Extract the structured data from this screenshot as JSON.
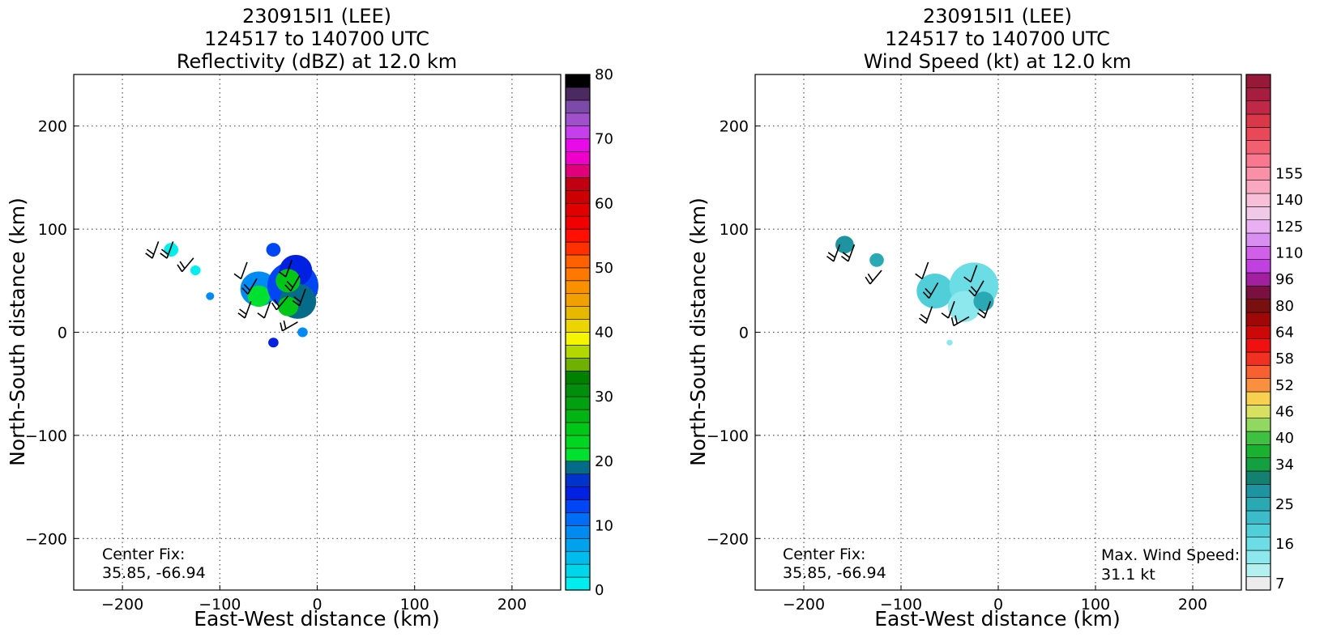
{
  "chart_data": [
    {
      "type": "heatmap",
      "title_lines": [
        "230915I1 (LEE)",
        "124517 to 140700 UTC",
        "Reflectivity (dBZ) at 12.0 km"
      ],
      "xlabel": "East-West distance (km)",
      "ylabel": "North-South distance (km)",
      "xlim": [
        -250,
        250
      ],
      "ylim": [
        -250,
        250
      ],
      "xticks": [
        -200,
        -100,
        0,
        100,
        200
      ],
      "yticks": [
        -200,
        -100,
        0,
        100,
        200
      ],
      "grid": true,
      "center_fix": {
        "label": "Center Fix:",
        "value": "35.85, -66.94"
      },
      "colorbar": {
        "min": 0,
        "max": 80,
        "ticks": [
          "0",
          "10",
          "20",
          "30",
          "40",
          "50",
          "60",
          "70",
          "80"
        ],
        "colors": [
          "#00eded",
          "#00d6ea",
          "#00bcec",
          "#00a2ee",
          "#008bf2",
          "#006ef4",
          "#0046f4",
          "#0020e2",
          "#0033cc",
          "#046b88",
          "#00e030",
          "#00d521",
          "#00c618",
          "#00b414",
          "#00a010",
          "#008e0c",
          "#008000",
          "#70b000",
          "#b2d800",
          "#f5f500",
          "#ecd400",
          "#e6b800",
          "#f0a000",
          "#f89000",
          "#ff7800",
          "#ff6000",
          "#ff3000",
          "#ff1000",
          "#f00000",
          "#e00000",
          "#cc0000",
          "#c00010",
          "#e0007a",
          "#ef00c8",
          "#e80ae8",
          "#c540ea",
          "#a050c8",
          "#7c4aa8",
          "#4a2a60",
          "#000000"
        ]
      },
      "blobs": [
        {
          "x": -150,
          "y": 80,
          "r": 7,
          "level": 0
        },
        {
          "x": -125,
          "y": 60,
          "r": 5,
          "level": 0
        },
        {
          "x": -110,
          "y": 35,
          "r": 4,
          "level": 4
        },
        {
          "x": -60,
          "y": 42,
          "r": 18,
          "level": 4
        },
        {
          "x": -60,
          "y": 35,
          "r": 11,
          "level": 10
        },
        {
          "x": -45,
          "y": 80,
          "r": 7,
          "level": 6
        },
        {
          "x": -25,
          "y": 45,
          "r": 25,
          "level": 6
        },
        {
          "x": -22,
          "y": 60,
          "r": 16,
          "level": 7
        },
        {
          "x": -20,
          "y": 30,
          "r": 18,
          "level": 9
        },
        {
          "x": -30,
          "y": 50,
          "r": 12,
          "level": 12
        },
        {
          "x": -30,
          "y": 25,
          "r": 10,
          "level": 12
        },
        {
          "x": -45,
          "y": -10,
          "r": 5,
          "level": 7
        },
        {
          "x": -15,
          "y": 0,
          "r": 5,
          "level": 4
        }
      ],
      "barbs": [
        {
          "x": -163,
          "y": 88,
          "dir": 200,
          "flags": 2
        },
        {
          "x": -148,
          "y": 88,
          "dir": 200,
          "flags": 2
        },
        {
          "x": -127,
          "y": 72,
          "dir": 220,
          "flags": 2
        },
        {
          "x": -72,
          "y": 68,
          "dir": 200,
          "flags": 1
        },
        {
          "x": -62,
          "y": 52,
          "dir": 210,
          "flags": 2
        },
        {
          "x": -68,
          "y": 30,
          "dir": 200,
          "flags": 2
        },
        {
          "x": -48,
          "y": 30,
          "dir": 200,
          "flags": 1
        },
        {
          "x": -26,
          "y": 70,
          "dir": 200,
          "flags": 1
        },
        {
          "x": -18,
          "y": 55,
          "dir": 210,
          "flags": 2
        },
        {
          "x": -30,
          "y": 35,
          "dir": 220,
          "flags": 2
        },
        {
          "x": -12,
          "y": 42,
          "dir": 200,
          "flags": 2
        },
        {
          "x": -20,
          "y": 10,
          "dir": 240,
          "flags": 2
        }
      ]
    },
    {
      "type": "heatmap",
      "title_lines": [
        "230915I1 (LEE)",
        "124517 to 140700 UTC",
        "Wind Speed (kt) at 12.0 km"
      ],
      "xlabel": "East-West distance (km)",
      "ylabel": "North-South distance (km)",
      "xlim": [
        -250,
        250
      ],
      "ylim": [
        -250,
        250
      ],
      "xticks": [
        -200,
        -100,
        0,
        100,
        200
      ],
      "yticks": [
        -200,
        -100,
        0,
        100,
        200
      ],
      "grid": true,
      "center_fix": {
        "label": "Center Fix:",
        "value": "35.85, -66.94"
      },
      "max_wind": {
        "label": "Max. Wind Speed:",
        "value": "31.1 kt"
      },
      "colorbar": {
        "ticks": [
          "7",
          "16",
          "25",
          "34",
          "40",
          "46",
          "52",
          "58",
          "64",
          "80",
          "96",
          "110",
          "125",
          "140",
          "155"
        ],
        "tick_levels": [
          0,
          3,
          6,
          9,
          11,
          13,
          15,
          17,
          19,
          21,
          23,
          25,
          27,
          29,
          31
        ],
        "colors": [
          "#ececec",
          "#b4f0f0",
          "#8ce8ec",
          "#6cdde4",
          "#50cfd8",
          "#3cbcc8",
          "#2aa8b4",
          "#1e94a0",
          "#148070",
          "#14a040",
          "#1ab030",
          "#40c040",
          "#90d860",
          "#d8e060",
          "#f8d050",
          "#f89040",
          "#f86030",
          "#f03020",
          "#f01010",
          "#cc0808",
          "#a00808",
          "#781010",
          "#7a1040",
          "#a020a0",
          "#c040e0",
          "#d060e8",
          "#d890f0",
          "#e8b0f0",
          "#f0c8e8",
          "#f8c0d8",
          "#f8a8c0",
          "#f890a8",
          "#f87890",
          "#f06070",
          "#e84858",
          "#d83848",
          "#c02848",
          "#a81c40",
          "#981838"
        ]
      },
      "blobs": [
        {
          "x": -158,
          "y": 85,
          "r": 9,
          "level": 7
        },
        {
          "x": -125,
          "y": 70,
          "r": 7,
          "level": 6
        },
        {
          "x": -65,
          "y": 40,
          "r": 18,
          "level": 4
        },
        {
          "x": -25,
          "y": 45,
          "r": 24,
          "level": 3
        },
        {
          "x": -35,
          "y": 25,
          "r": 16,
          "level": 2
        },
        {
          "x": -15,
          "y": 30,
          "r": 10,
          "level": 6
        },
        {
          "x": -50,
          "y": -10,
          "r": 3,
          "level": 2
        }
      ],
      "barbs": [
        {
          "x": -163,
          "y": 85,
          "dir": 200,
          "flags": 2
        },
        {
          "x": -148,
          "y": 85,
          "dir": 200,
          "flags": 2
        },
        {
          "x": -120,
          "y": 60,
          "dir": 220,
          "flags": 2
        },
        {
          "x": -72,
          "y": 68,
          "dir": 200,
          "flags": 1
        },
        {
          "x": -62,
          "y": 48,
          "dir": 210,
          "flags": 2
        },
        {
          "x": -68,
          "y": 25,
          "dir": 200,
          "flags": 2
        },
        {
          "x": -45,
          "y": 30,
          "dir": 200,
          "flags": 1
        },
        {
          "x": -22,
          "y": 65,
          "dir": 200,
          "flags": 1
        },
        {
          "x": -15,
          "y": 50,
          "dir": 210,
          "flags": 2
        },
        {
          "x": -30,
          "y": 15,
          "dir": 240,
          "flags": 2
        },
        {
          "x": -8,
          "y": 30,
          "dir": 200,
          "flags": 2
        }
      ]
    }
  ]
}
